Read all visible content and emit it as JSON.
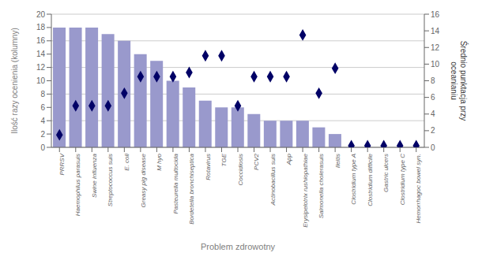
{
  "chart_data": {
    "type": "bar",
    "xlabel": "Problem zdrowotny",
    "ylabel": "Ilość razy ocenienia (kolumny)",
    "y2label": "Średnio punktacja przy\noceanianiu",
    "categories": [
      "PRRSV",
      "Haemophilus parasuis",
      "Swine influenza",
      "Streptococcus suis",
      "E. coli",
      "Greasy pig disease",
      "M hyo",
      "Pasteurella multocida",
      "Bordetella bronchiseptica",
      "Rotavirus",
      "TGE",
      "Coccidiosis",
      "PCV2",
      "Actinobacillus suis",
      "App",
      "Erysipelotrix rushiopathiae",
      "Salmonella cholerasuis",
      "Ileitis",
      "Clostridium type A",
      "Clostridium difficile",
      "Gastric ulcers",
      "Clostridium type C",
      "Hemorrhagoc bowel syn."
    ],
    "series": [
      {
        "type": "bar",
        "color": "#9999cc",
        "values": [
          18,
          18,
          18,
          17,
          16,
          14,
          13,
          10,
          9,
          7,
          6,
          6,
          5,
          4,
          4,
          4,
          3,
          2,
          0,
          0,
          0,
          0,
          0
        ]
      },
      {
        "type": "scatter",
        "axis": "y2",
        "color": "#000066",
        "marker": "diamond",
        "values": [
          1.5,
          5.0,
          5.0,
          5.0,
          6.5,
          8.5,
          8.5,
          8.5,
          9.0,
          11.0,
          11.0,
          5.0,
          8.5,
          8.5,
          8.5,
          13.5,
          6.5,
          9.5,
          0.2,
          0.2,
          0.2,
          0.2,
          0.2
        ]
      }
    ],
    "ylim": [
      0,
      20
    ],
    "yticks": [
      0,
      2,
      4,
      6,
      8,
      10,
      12,
      14,
      16,
      18,
      20
    ],
    "y2lim": [
      0,
      16
    ],
    "y2ticks": [
      0,
      2,
      4,
      6,
      8,
      10,
      12,
      14,
      16
    ],
    "grid": true
  }
}
